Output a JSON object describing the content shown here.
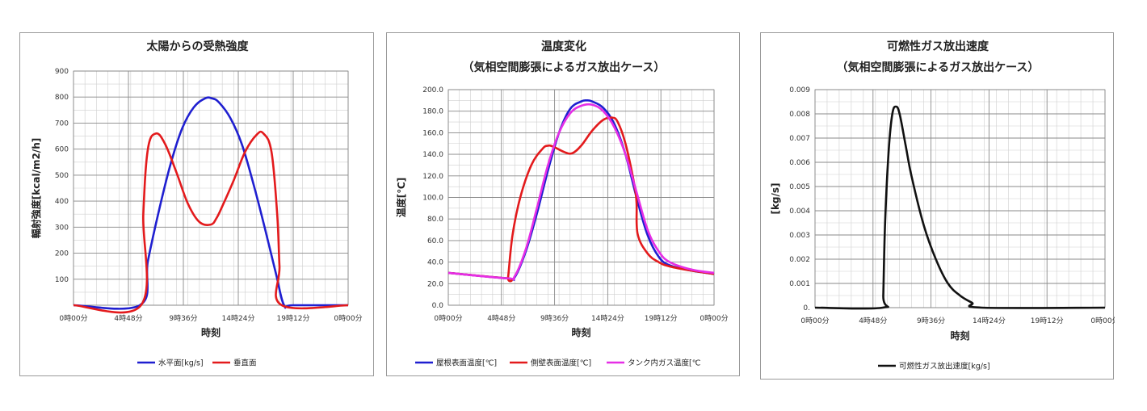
{
  "chart_data": [
    {
      "type": "line",
      "title": "太陽からの受熱強度",
      "subtitle": "",
      "xlabel": "時刻",
      "ylabel": "輻射強度[kcal/m2/h]",
      "x_unit": "hours",
      "xlim": [
        0,
        24
      ],
      "ylim": [
        0,
        900
      ],
      "x_tick_labels": [
        "0時00分",
        "4時48分",
        "9時36分",
        "14時24分",
        "19時12分",
        "0時00分"
      ],
      "y_tick_labels": [
        "",
        "100",
        "200",
        "300",
        "400",
        "500",
        "600",
        "700",
        "800",
        "900"
      ],
      "grid": true,
      "legend_position": "bottom",
      "series": [
        {
          "name": "水平面[kg/s]",
          "color": "#1f1fd0",
          "x": [
            0,
            5.8,
            6.5,
            7.5,
            8.5,
            9.5,
            10.5,
            11.5,
            12.1,
            12.7,
            13.7,
            14.7,
            15.7,
            16.7,
            17.7,
            18.4,
            19.2,
            24
          ],
          "y": [
            0,
            0,
            170,
            370,
            545,
            680,
            760,
            795,
            795,
            780,
            720,
            620,
            470,
            300,
            120,
            0,
            0,
            0
          ]
        },
        {
          "name": "垂直面",
          "color": "#e31a1c",
          "x": [
            0,
            5.9,
            6.1,
            6.5,
            7.2,
            8.0,
            9.0,
            10.0,
            11.0,
            12.0,
            12.5,
            13.0,
            14.0,
            15.0,
            16.0,
            16.6,
            17.3,
            17.8,
            18.0,
            18.2,
            24
          ],
          "y": [
            0,
            0,
            350,
            600,
            660,
            620,
            510,
            390,
            320,
            310,
            335,
            380,
            480,
            590,
            655,
            660,
            590,
            350,
            150,
            0,
            0
          ]
        }
      ]
    },
    {
      "type": "line",
      "title": "温度変化",
      "subtitle": "（気相空間膨張によるガス放出ケース）",
      "xlabel": "時刻",
      "ylabel": "温度[℃]",
      "x_unit": "hours",
      "xlim": [
        0,
        24
      ],
      "ylim": [
        0,
        200
      ],
      "x_tick_labels": [
        "0時00分",
        "4時48分",
        "9時36分",
        "14時24分",
        "19時12分",
        "0時00分"
      ],
      "y_tick_labels": [
        "0.0",
        "20.0",
        "40.0",
        "60.0",
        "80.0",
        "100.0",
        "120.0",
        "140.0",
        "160.0",
        "180.0",
        "200.0"
      ],
      "grid": true,
      "legend_position": "bottom",
      "series": [
        {
          "name": "屋根表面温度[℃]",
          "color": "#1f1fd0",
          "x": [
            0,
            5.3,
            6.0,
            7.0,
            8.0,
            9.0,
            10.0,
            11.0,
            12.0,
            12.5,
            13.0,
            14.0,
            15.0,
            16.0,
            17.0,
            18.0,
            19.0,
            20.0,
            22.0,
            24.0
          ],
          "y": [
            30,
            25,
            26,
            50,
            85,
            125,
            160,
            182,
            189,
            190,
            189,
            183,
            168,
            140,
            100,
            65,
            45,
            37,
            32,
            29
          ]
        },
        {
          "name": "側壁表面温度[℃]",
          "color": "#e31a1c",
          "x": [
            0,
            5.3,
            5.4,
            5.8,
            6.5,
            7.5,
            8.5,
            9.0,
            9.5,
            10.5,
            11.2,
            12.0,
            13.0,
            14.0,
            14.8,
            15.3,
            16.0,
            16.8,
            17.0,
            17.1,
            18.0,
            19.0,
            20.0,
            22.0,
            24.0
          ],
          "y": [
            30,
            25,
            26,
            65,
            100,
            130,
            145,
            148,
            147,
            142,
            141,
            148,
            162,
            172,
            174,
            170,
            150,
            112,
            95,
            66,
            48,
            40,
            36,
            32,
            29
          ]
        },
        {
          "name": "タンク内ガス温度[℃",
          "color": "#e62ee6",
          "x": [
            0,
            5.3,
            6.0,
            7.0,
            8.0,
            9.0,
            10.0,
            11.0,
            12.0,
            13.0,
            14.0,
            15.0,
            16.0,
            17.0,
            18.0,
            19.0,
            20.0,
            22.0,
            24.0
          ],
          "y": [
            30,
            25,
            27,
            52,
            90,
            130,
            160,
            178,
            185,
            186,
            180,
            165,
            140,
            105,
            70,
            50,
            40,
            33,
            30
          ]
        }
      ]
    },
    {
      "type": "line",
      "title": "可燃性ガス放出速度",
      "subtitle": "（気相空間膨張によるガス放出ケース）",
      "xlabel": "時刻",
      "ylabel": "[kg/s]",
      "x_unit": "hours",
      "xlim": [
        0,
        24
      ],
      "ylim": [
        0,
        0.009
      ],
      "x_tick_labels": [
        "0時00分",
        "4時48分",
        "9時36分",
        "14時24分",
        "19時12分",
        "0時00分"
      ],
      "y_tick_labels": [
        "0.",
        "0.001",
        "0.002",
        "0.003",
        "0.004",
        "0.005",
        "0.006",
        "0.007",
        "0.008",
        "0.009"
      ],
      "grid": true,
      "legend_position": "bottom",
      "series": [
        {
          "name": "可燃性ガス放出速度[kg/s]",
          "color": "#111111",
          "x": [
            0,
            5.6,
            5.65,
            5.8,
            6.1,
            6.4,
            6.7,
            7.0,
            7.5,
            8.0,
            9.0,
            10.0,
            11.0,
            12.0,
            13.0,
            13.8,
            24.0
          ],
          "y": [
            0,
            0,
            0.0005,
            0.0035,
            0.0065,
            0.008,
            0.0083,
            0.008,
            0.0067,
            0.0054,
            0.0034,
            0.002,
            0.001,
            0.0005,
            0.0002,
            0,
            0
          ]
        }
      ]
    }
  ]
}
